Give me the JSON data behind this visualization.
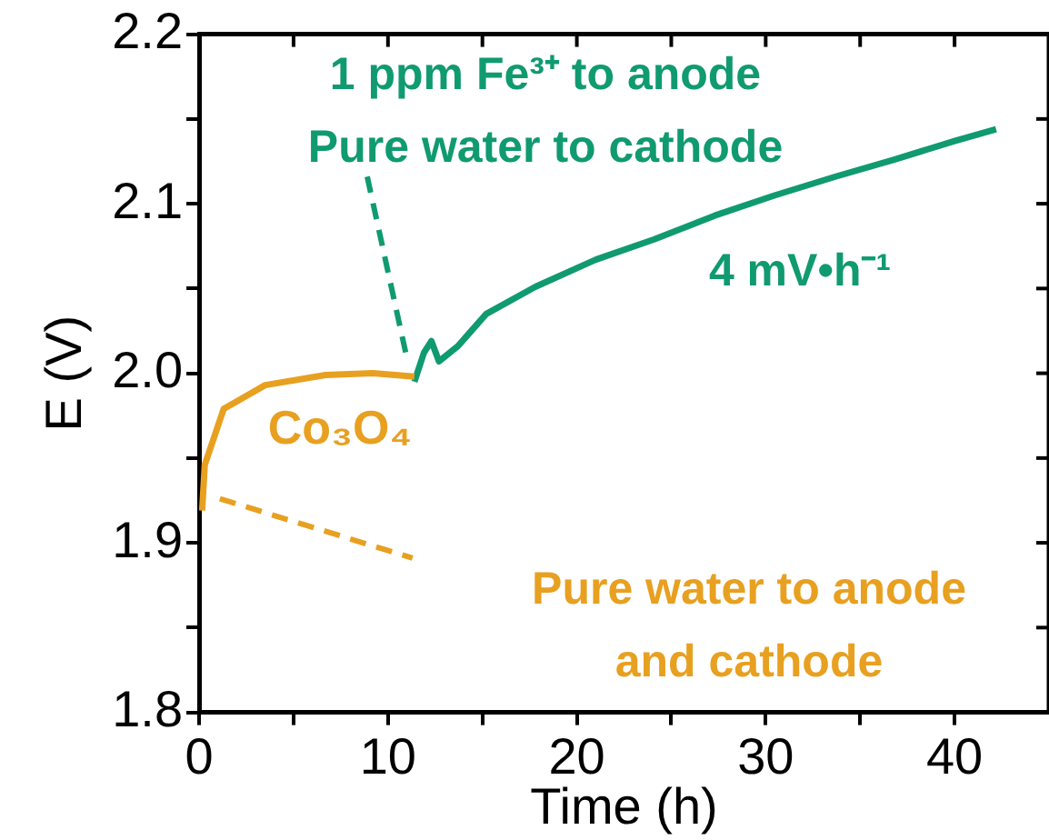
{
  "chart_data": {
    "type": "line",
    "xlabel": "Time (h)",
    "ylabel": "E (V)",
    "xlim": [
      0,
      45
    ],
    "ylim": [
      1.8,
      2.2
    ],
    "xticks": [
      0,
      {
        "value": 5,
        "label": null
      },
      10,
      {
        "value": 15,
        "label": null
      },
      20,
      {
        "value": 25,
        "label": null
      },
      30,
      {
        "value": 35,
        "label": null
      },
      40
    ],
    "yticks": [
      1.8,
      {
        "value": 1.85,
        "label": null
      },
      1.9,
      {
        "value": 1.95,
        "label": null
      },
      {
        "value": 2,
        "label": "2.0"
      },
      {
        "value": 2.05,
        "label": null
      },
      2.1,
      {
        "value": 2.15,
        "label": null
      },
      2.2
    ],
    "grid": false,
    "legend": false,
    "marker": "none",
    "line_style": "solid",
    "series": [
      {
        "name": "Co₃O₄",
        "color": "#e8a020",
        "x": [
          0.16,
          0.3,
          1.3,
          3.5,
          6.7,
          9.2,
          11.4
        ],
        "values": [
          1.919,
          1.946,
          1.979,
          1.993,
          1.999,
          2.0,
          1.998
        ]
      },
      {
        "color": "#109a70",
        "x": [
          11.4,
          11.9,
          12.3,
          12.7,
          13.7,
          15.2,
          17.8,
          21,
          24.1,
          27.3,
          30.5,
          33.7,
          36.8,
          40,
          42.2
        ],
        "values": [
          1.995,
          2.012,
          2.019,
          2.007,
          2.016,
          2.035,
          2.051,
          2.067,
          2.079,
          2.093,
          2.105,
          2.116,
          2.126,
          2.137,
          2.144
        ]
      }
    ],
    "annotations": [
      "1 ppm Fe³⁺ to anode",
      "Pure water to cathode",
      "4 mV•h⁻¹",
      "Pure water to anode",
      "and cathode"
    ]
  }
}
